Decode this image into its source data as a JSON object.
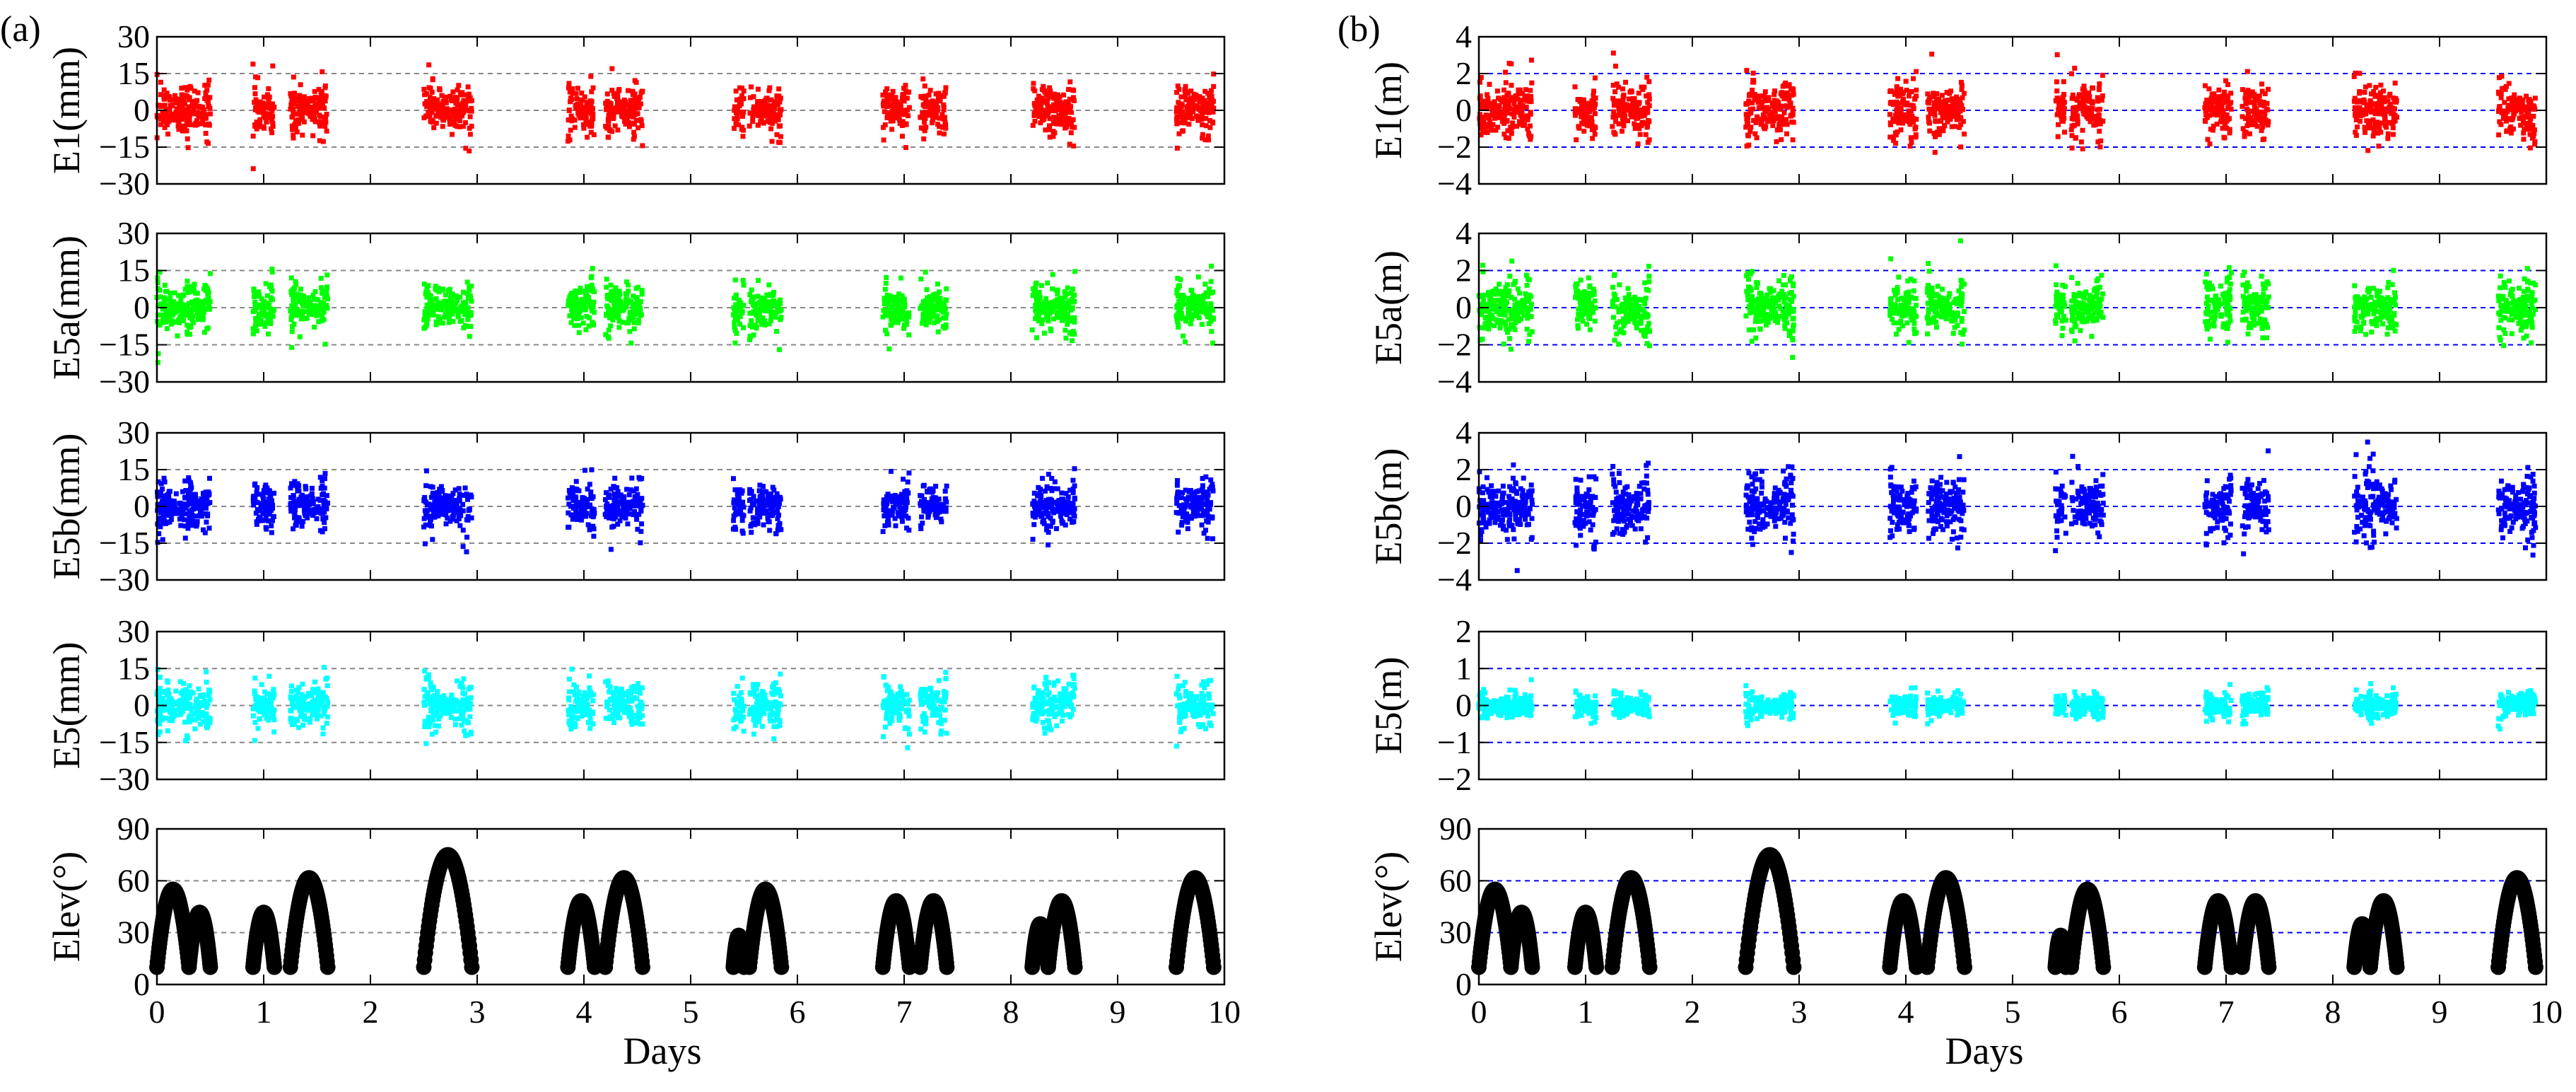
{
  "figure": {
    "panel_labels": [
      "(a)",
      "(b)"
    ],
    "colors": {
      "E1": "#ff0000",
      "E5a": "#00ff00",
      "E5b": "#0000ff",
      "E5": "#00ffff",
      "Elev": "#000000",
      "grid_a": "#888888",
      "grid_b": "#0000ff",
      "frame": "#000000"
    }
  },
  "chart_data": [
    {
      "type": "scatter",
      "panel": "(a)",
      "xlabel": "Days",
      "x_ticks": [
        "0",
        "1",
        "2",
        "3",
        "4",
        "5",
        "6",
        "7",
        "8",
        "9",
        "10"
      ],
      "xlim": [
        0,
        10
      ],
      "passes": [
        [
          0.0,
          0.3
        ],
        [
          0.3,
          0.5
        ],
        [
          0.9,
          1.1
        ],
        [
          1.25,
          1.6
        ],
        [
          2.5,
          2.95
        ],
        [
          3.85,
          4.1
        ],
        [
          4.2,
          4.55
        ],
        [
          5.4,
          5.5
        ],
        [
          5.55,
          5.85
        ],
        [
          6.8,
          7.05
        ],
        [
          7.15,
          7.4
        ],
        [
          8.2,
          8.35
        ],
        [
          8.35,
          8.6
        ],
        [
          9.55,
          9.9
        ]
      ],
      "rows": [
        {
          "name": "E1",
          "ylabel": "E1(mm)",
          "ylim": [
            -30,
            30
          ],
          "yticks": [
            "30",
            "15",
            "0",
            "−15",
            "−30"
          ],
          "tick_values": [
            30,
            15,
            0,
            -15,
            -30
          ],
          "grid": [
            15,
            0,
            -15
          ],
          "series_color": "E1",
          "spread": 14
        },
        {
          "name": "E5a",
          "ylabel": "E5a(mm)",
          "ylim": [
            -30,
            30
          ],
          "yticks": [
            "30",
            "15",
            "0",
            "−15",
            "−30"
          ],
          "tick_values": [
            30,
            15,
            0,
            -15,
            -30
          ],
          "grid": [
            15,
            0,
            -15
          ],
          "series_color": "E5a",
          "spread": 14
        },
        {
          "name": "E5b",
          "ylabel": "E5b(mm)",
          "ylim": [
            -30,
            30
          ],
          "yticks": [
            "30",
            "15",
            "0",
            "−15",
            "−30"
          ],
          "tick_values": [
            30,
            15,
            0,
            -15,
            -30
          ],
          "grid": [
            15,
            0,
            -15
          ],
          "series_color": "E5b",
          "spread": 14
        },
        {
          "name": "E5",
          "ylabel": "E5(mm)",
          "ylim": [
            -30,
            30
          ],
          "yticks": [
            "30",
            "15",
            "0",
            "−15",
            "−30"
          ],
          "tick_values": [
            30,
            15,
            0,
            -15,
            -30
          ],
          "grid": [
            15,
            0,
            -15
          ],
          "series_color": "E5",
          "spread": 13
        },
        {
          "name": "Elev",
          "ylabel": "Elev(°)",
          "ylim": [
            0,
            90
          ],
          "yticks": [
            "90",
            "60",
            "30",
            "0"
          ],
          "tick_values": [
            90,
            60,
            30,
            0
          ],
          "grid": [
            60,
            30
          ],
          "series_color": "Elev",
          "elevation": true
        }
      ]
    },
    {
      "type": "scatter",
      "panel": "(b)",
      "xlabel": "Days",
      "x_ticks": [
        "0",
        "1",
        "2",
        "3",
        "4",
        "5",
        "6",
        "7",
        "8",
        "9",
        "10"
      ],
      "xlim": [
        0,
        10
      ],
      "passes": [
        [
          0.0,
          0.3
        ],
        [
          0.3,
          0.5
        ],
        [
          0.9,
          1.1
        ],
        [
          1.25,
          1.6
        ],
        [
          2.5,
          2.95
        ],
        [
          3.85,
          4.1
        ],
        [
          4.2,
          4.55
        ],
        [
          5.4,
          5.5
        ],
        [
          5.55,
          5.85
        ],
        [
          6.8,
          7.05
        ],
        [
          7.15,
          7.4
        ],
        [
          8.2,
          8.35
        ],
        [
          8.35,
          8.6
        ],
        [
          9.55,
          9.9
        ]
      ],
      "rows": [
        {
          "name": "E1",
          "ylabel": "E1(m)",
          "ylim": [
            -4,
            4
          ],
          "yticks": [
            "4",
            "2",
            "0",
            "−2",
            "−4"
          ],
          "tick_values": [
            4,
            2,
            0,
            -2,
            -4
          ],
          "grid": [
            2,
            0,
            -2
          ],
          "series_color": "E1",
          "spread": 2.2
        },
        {
          "name": "E5a",
          "ylabel": "E5a(m)",
          "ylim": [
            -4,
            4
          ],
          "yticks": [
            "4",
            "2",
            "0",
            "−2",
            "−4"
          ],
          "tick_values": [
            4,
            2,
            0,
            -2,
            -4
          ],
          "grid": [
            2,
            0,
            -2
          ],
          "series_color": "E5a",
          "spread": 2.0
        },
        {
          "name": "E5b",
          "ylabel": "E5b(m)",
          "ylim": [
            -4,
            4
          ],
          "yticks": [
            "4",
            "2",
            "0",
            "−2",
            "−4"
          ],
          "tick_values": [
            4,
            2,
            0,
            -2,
            -4
          ],
          "grid": [
            2,
            0,
            -2
          ],
          "series_color": "E5b",
          "spread": 2.3
        },
        {
          "name": "E5",
          "ylabel": "E5(m)",
          "ylim": [
            -2,
            2
          ],
          "yticks": [
            "2",
            "1",
            "0",
            "−1",
            "−2"
          ],
          "tick_values": [
            2,
            1,
            0,
            -1,
            -2
          ],
          "grid": [
            1,
            0,
            -1
          ],
          "series_color": "E5",
          "spread": 0.45
        },
        {
          "name": "Elev",
          "ylabel": "Elev(°)",
          "ylim": [
            0,
            90
          ],
          "yticks": [
            "90",
            "60",
            "30",
            "0"
          ],
          "tick_values": [
            90,
            60,
            30,
            0
          ],
          "grid": [
            60,
            30
          ],
          "series_color": "Elev",
          "elevation": true
        }
      ]
    }
  ]
}
